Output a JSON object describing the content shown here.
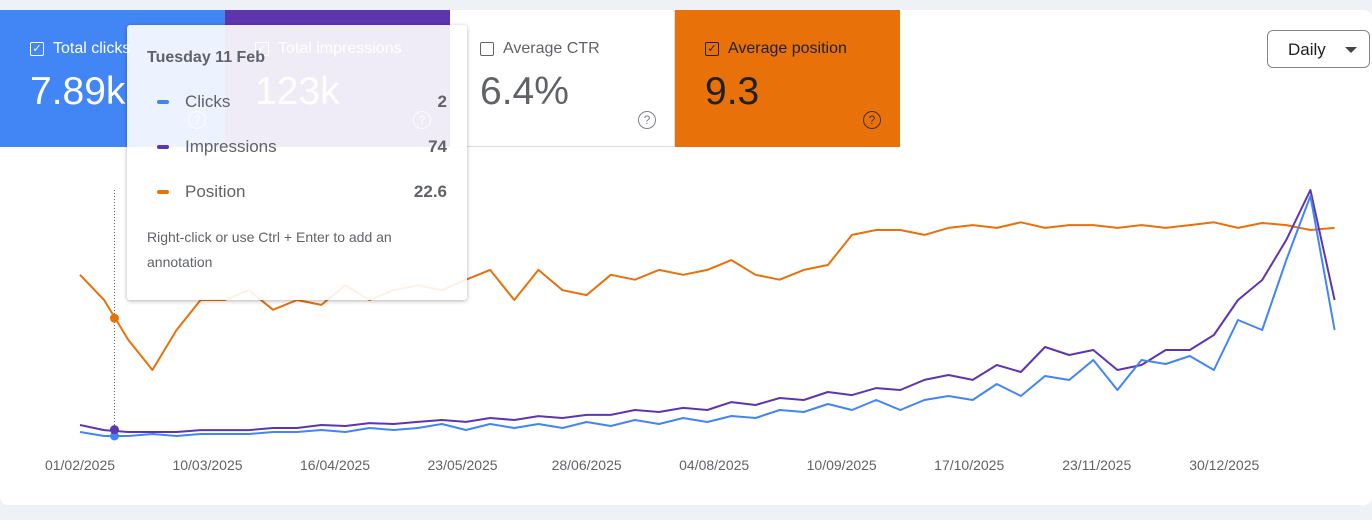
{
  "tiles": [
    {
      "label": "Total clicks",
      "value": "7.89k",
      "checked": true,
      "color": "#4285f4",
      "text_color": "#ffffff"
    },
    {
      "label": "Total impressions",
      "value": "123k",
      "checked": true,
      "color": "#5e35b1",
      "text_color": "#ffffff"
    },
    {
      "label": "Average CTR",
      "value": "6.4%",
      "checked": false,
      "color": "#ffffff",
      "text_color": "#5f6368"
    },
    {
      "label": "Average position",
      "value": "9.3",
      "checked": true,
      "color": "#e8710a",
      "text_color": "#202124"
    }
  ],
  "dropdown": "Daily",
  "chart_data": {
    "type": "line",
    "x": [
      "2025-02-01",
      "2025-02-08",
      "2025-02-15",
      "2025-02-22",
      "2025-03-01",
      "2025-03-08",
      "2025-03-15",
      "2025-03-22",
      "2025-03-29",
      "2025-04-05",
      "2025-04-12",
      "2025-04-19",
      "2025-04-26",
      "2025-05-03",
      "2025-05-10",
      "2025-05-17",
      "2025-05-24",
      "2025-05-31",
      "2025-06-07",
      "2025-06-14",
      "2025-06-21",
      "2025-06-28",
      "2025-07-05",
      "2025-07-12",
      "2025-07-19",
      "2025-07-26",
      "2025-08-02",
      "2025-08-09",
      "2025-08-16",
      "2025-08-23",
      "2025-08-30",
      "2025-09-06",
      "2025-09-13",
      "2025-09-20",
      "2025-09-27",
      "2025-10-04",
      "2025-10-11",
      "2025-10-18",
      "2025-10-25",
      "2025-11-01",
      "2025-11-08",
      "2025-11-15",
      "2025-11-22",
      "2025-11-29",
      "2025-12-06",
      "2025-12-13",
      "2025-12-20",
      "2025-12-27",
      "2026-01-03",
      "2026-01-10",
      "2026-01-17",
      "2026-01-24",
      "2026-01-31"
    ],
    "xlim": [
      "2025-02-01",
      "2026-02-01"
    ],
    "xticks": [
      {
        "value": "2025-02-01",
        "label": "01/02/2025"
      },
      {
        "value": "2025-03-10",
        "label": "10/03/2025"
      },
      {
        "value": "2025-04-16",
        "label": "16/04/2025"
      },
      {
        "value": "2025-05-23",
        "label": "23/05/2025"
      },
      {
        "value": "2025-06-28",
        "label": "28/06/2025"
      },
      {
        "value": "2025-08-04",
        "label": "04/08/2025"
      },
      {
        "value": "2025-09-10",
        "label": "10/09/2025"
      },
      {
        "value": "2025-10-17",
        "label": "17/10/2025"
      },
      {
        "value": "2025-11-23",
        "label": "23/11/2025"
      },
      {
        "value": "2025-12-30",
        "label": "30/12/2025"
      }
    ],
    "series": [
      {
        "name": "Clicks",
        "color": "#4285f4",
        "ylim": [
          0,
          140
        ],
        "values": [
          4,
          2,
          2,
          3,
          2,
          3,
          3,
          3,
          4,
          4,
          5,
          4,
          6,
          5,
          6,
          8,
          5,
          8,
          6,
          8,
          6,
          9,
          7,
          10,
          8,
          11,
          9,
          12,
          11,
          15,
          14,
          18,
          15,
          20,
          15,
          20,
          22,
          20,
          28,
          22,
          32,
          30,
          40,
          25,
          40,
          38,
          42,
          35,
          60,
          55,
          90,
          122,
          55
        ]
      },
      {
        "name": "Impressions",
        "color": "#5e35b1",
        "ylim": [
          0,
          2000
        ],
        "values": [
          107,
          71,
          57,
          57,
          57,
          71,
          71,
          71,
          86,
          86,
          107,
          100,
          121,
          114,
          129,
          143,
          129,
          157,
          143,
          171,
          157,
          179,
          179,
          214,
          200,
          229,
          214,
          271,
          250,
          300,
          286,
          343,
          321,
          371,
          357,
          429,
          464,
          429,
          536,
          486,
          664,
          607,
          643,
          500,
          536,
          643,
          643,
          750,
          1000,
          1143,
          1429,
          1786,
          1000
        ]
      },
      {
        "name": "Position",
        "color": "#e8710a",
        "ylim": [
          40,
          0
        ],
        "values": [
          16.4,
          20,
          25.7,
          30,
          24.3,
          20,
          20,
          18.6,
          21.4,
          20,
          20.7,
          17.9,
          20,
          18.6,
          17.9,
          18.6,
          17.1,
          15.7,
          20,
          15.7,
          18.6,
          19.3,
          16.4,
          17.1,
          15.7,
          16.4,
          15.7,
          14.3,
          16.4,
          17.1,
          15.7,
          15,
          10.7,
          10,
          10,
          10.7,
          9.7,
          9.3,
          9.7,
          8.9,
          9.7,
          9.3,
          9.3,
          9.7,
          9.3,
          9.7,
          9.3,
          8.9,
          9.7,
          9,
          9.3,
          10,
          9.7
        ]
      }
    ],
    "tooltip": {
      "title": "Tuesday 11 Feb",
      "x": "2025-02-11",
      "values": [
        2,
        74,
        22.6
      ],
      "note": "Right-click or use Ctrl + Enter to add an annotation"
    }
  }
}
